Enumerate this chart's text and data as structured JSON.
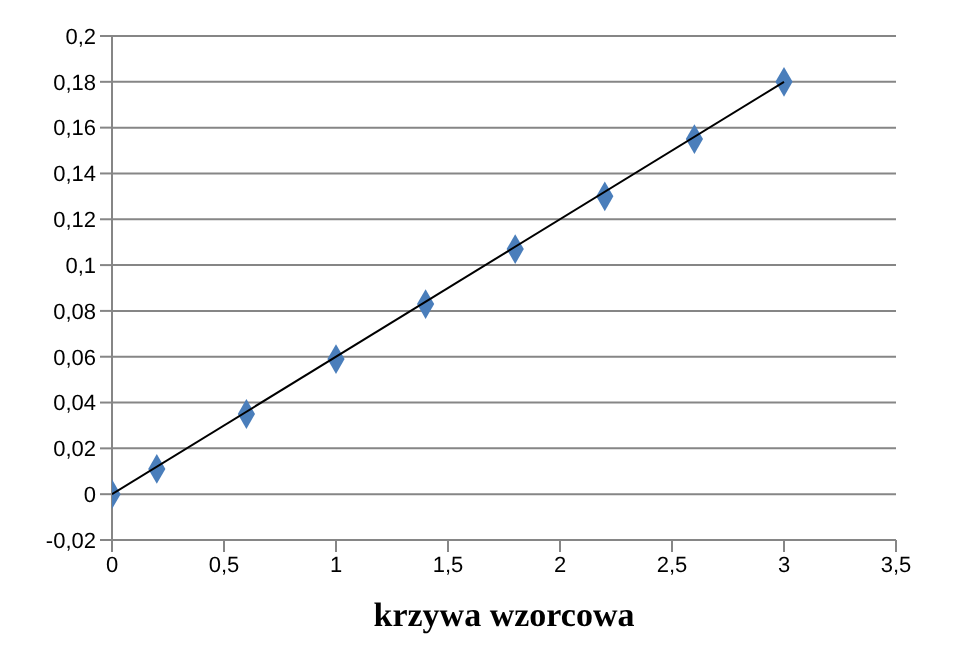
{
  "chart_data": {
    "type": "scatter",
    "xlabel": "krzywa wzorcowa",
    "series": [
      {
        "color": "#4a7ebb",
        "marker": "diamond",
        "x": [
          0,
          0.2,
          0.6,
          1,
          1.4,
          1.8,
          2.2,
          2.6,
          3
        ],
        "values": [
          0,
          0.011,
          0.035,
          0.059,
          0.083,
          0.107,
          0.13,
          0.155,
          0.18
        ]
      },
      {
        "type": "line",
        "color": "#000000",
        "marker": "none",
        "x": [
          0,
          3
        ],
        "values": [
          0,
          0.18
        ]
      }
    ],
    "xlim": [
      0,
      3.5
    ],
    "xticks": [
      0,
      {
        "value": 0.5,
        "label": "0,5"
      },
      1,
      {
        "value": 1.5,
        "label": "1,5"
      },
      2,
      {
        "value": 2.5,
        "label": "2,5"
      },
      3,
      {
        "value": 3.5,
        "label": "3,5"
      }
    ],
    "ylim": [
      -0.02,
      0.2
    ],
    "yticks": [
      {
        "value": -0.02,
        "label": "-0,02"
      },
      0,
      {
        "value": 0.02,
        "label": "0,02"
      },
      {
        "value": 0.04,
        "label": "0,04"
      },
      {
        "value": 0.06,
        "label": "0,06"
      },
      {
        "value": 0.08,
        "label": "0,08"
      },
      {
        "value": 0.1,
        "label": "0,1"
      },
      {
        "value": 0.12,
        "label": "0,12"
      },
      {
        "value": 0.14,
        "label": "0,14"
      },
      {
        "value": 0.16,
        "label": "0,16"
      },
      {
        "value": 0.18,
        "label": "0,18"
      },
      {
        "value": 0.2,
        "label": "0,2"
      }
    ],
    "grid": "y"
  }
}
